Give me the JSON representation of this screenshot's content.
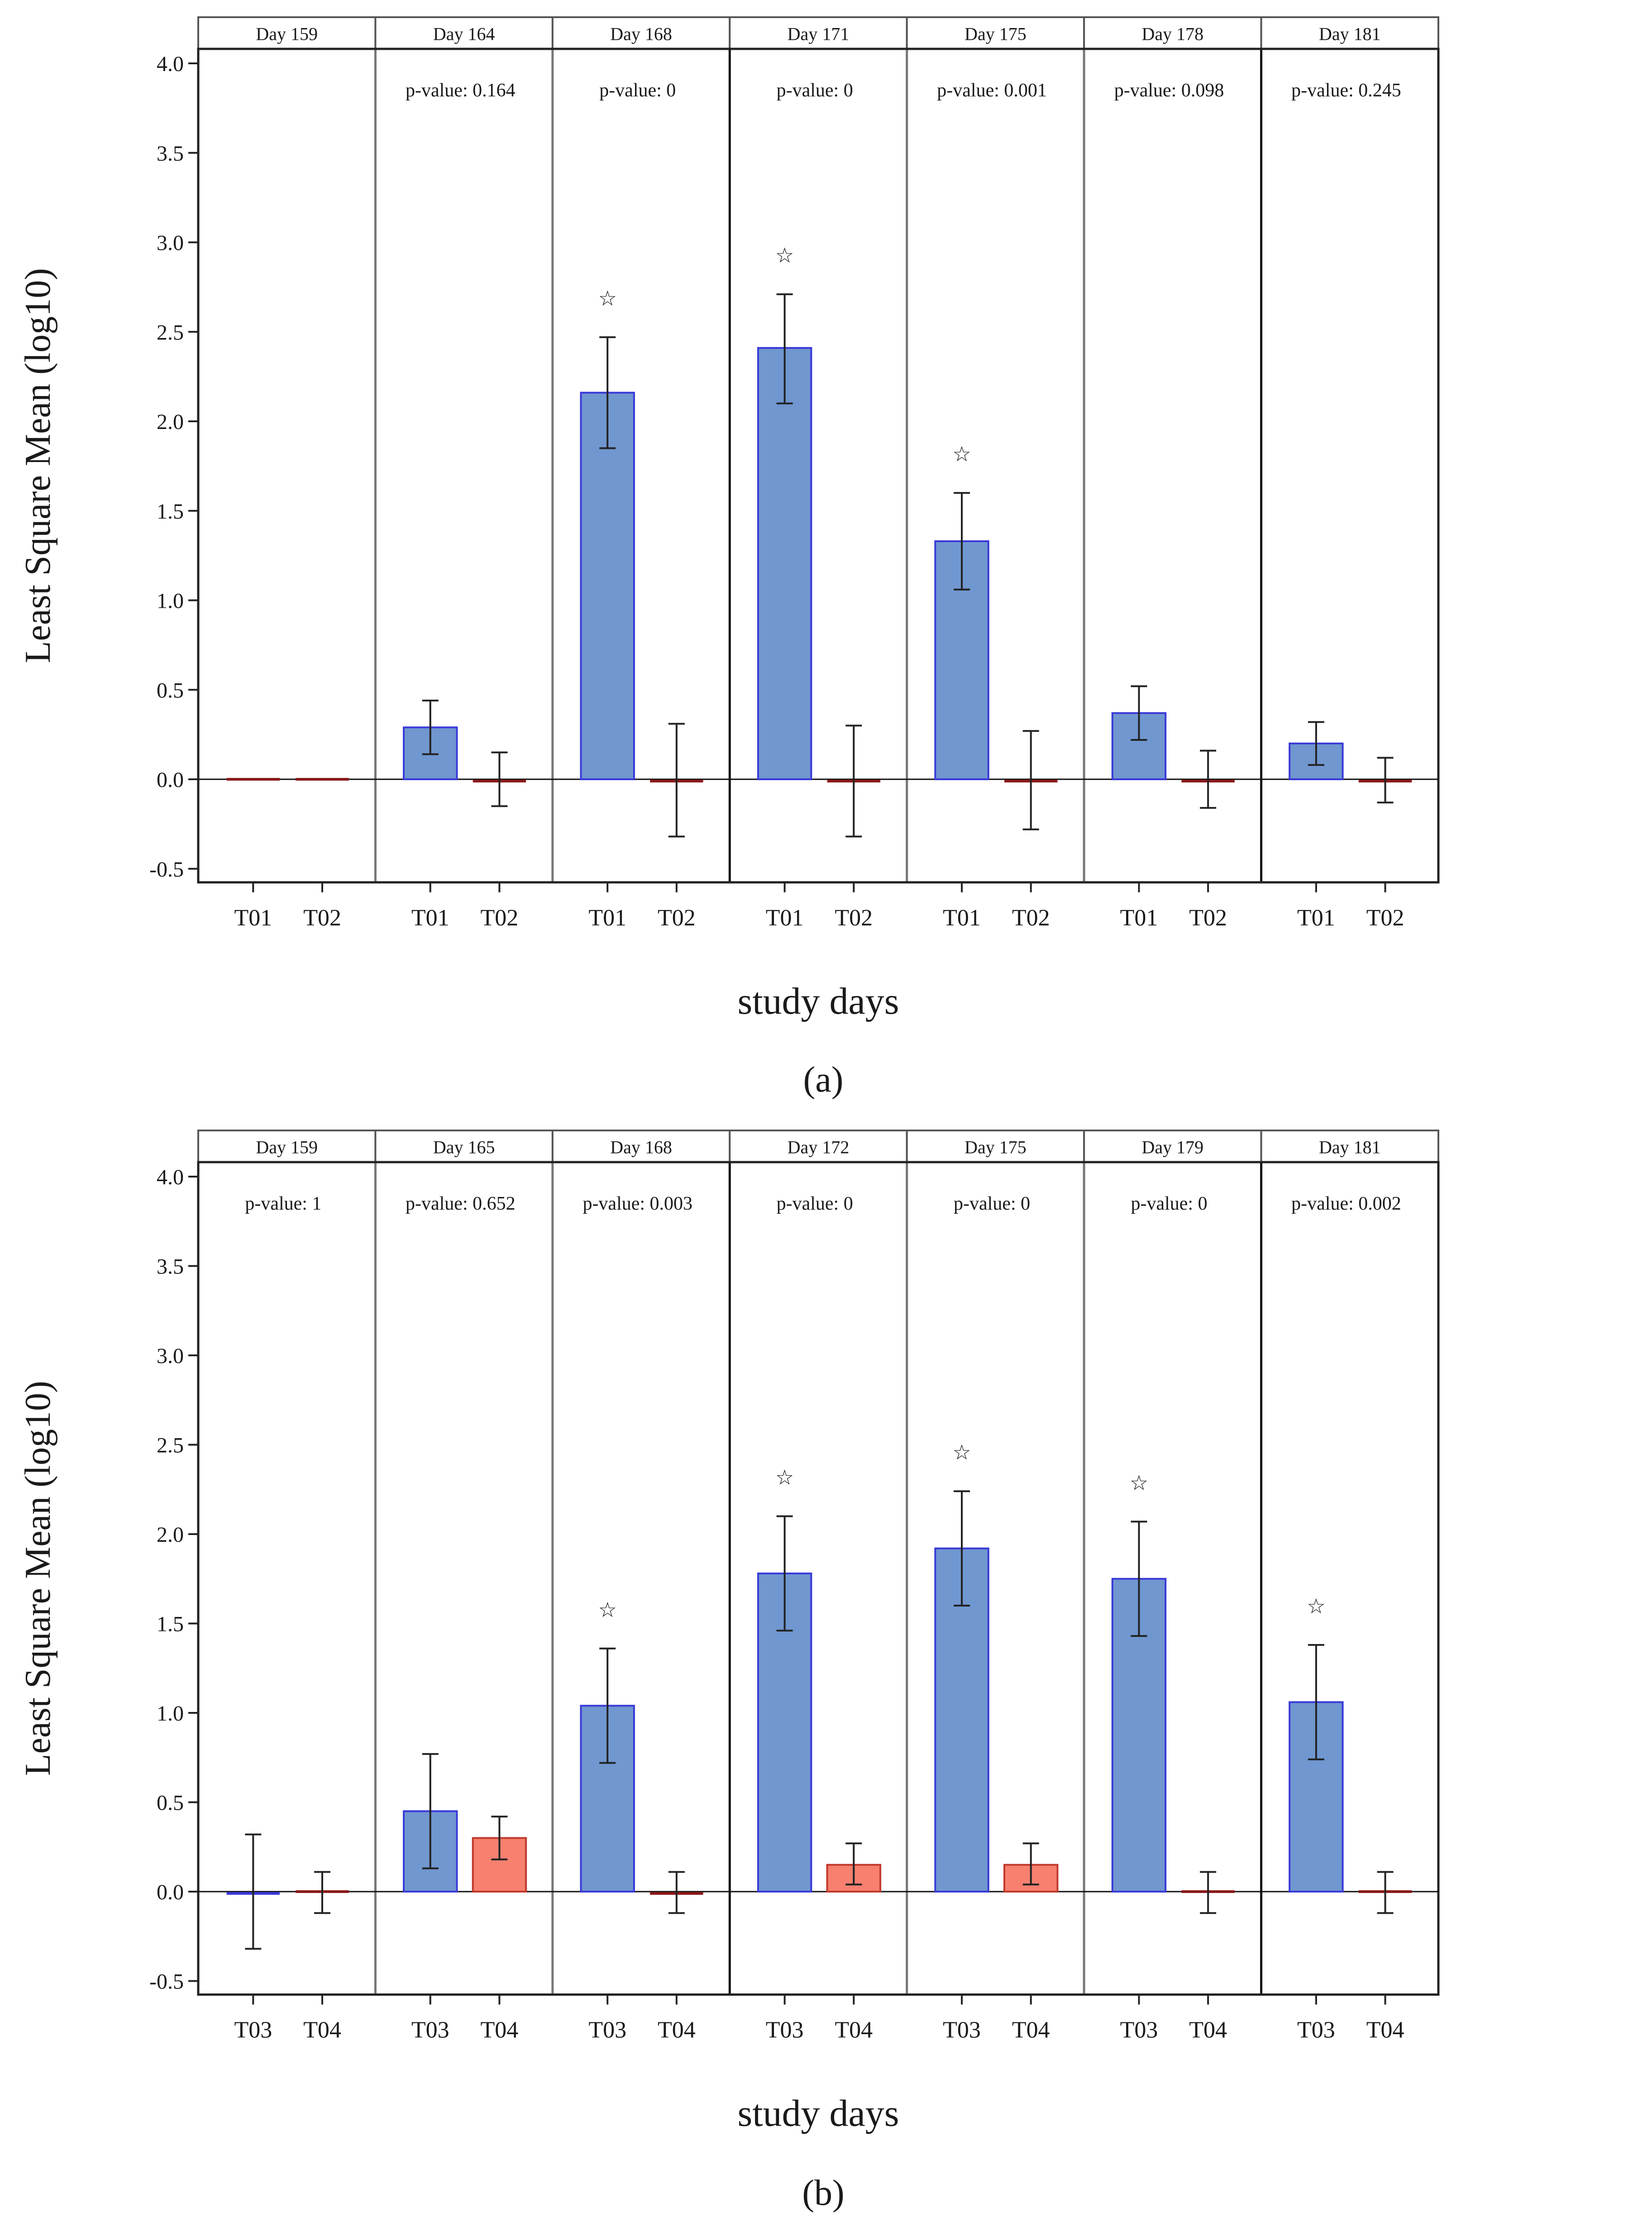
{
  "figure": {
    "panel_labels": [
      "(a)",
      "(b)"
    ],
    "colors": {
      "bar_blue": "#7097cf",
      "bar_blue_edge": "#3a3ad8",
      "bar_red": "#f7806f",
      "bar_red_edge": "#c0392b",
      "zero_line_red": "#8b1a1a",
      "star": "#3f3fd6"
    }
  },
  "chart_data": [
    {
      "type": "bar",
      "panel": "(a)",
      "ylabel": "Least Square Mean (log10)",
      "xlabel": "study days",
      "ylim": [
        -0.5,
        4.0
      ],
      "yticks": [
        "-0.5",
        "0.0",
        "0.5",
        "1.0",
        "1.5",
        "2.0",
        "2.5",
        "3.0",
        "3.5",
        "4.0"
      ],
      "groups": [
        "T01",
        "T02"
      ],
      "facets": [
        {
          "day": "Day 159",
          "pvalue": "",
          "values": [
            0.0,
            0.0
          ],
          "err": [
            [
              null,
              null
            ],
            [
              null,
              null
            ]
          ],
          "star": false
        },
        {
          "day": "Day 164",
          "pvalue": "p-value: 0.164",
          "values": [
            0.29,
            -0.01
          ],
          "err": [
            [
              0.14,
              0.44
            ],
            [
              -0.15,
              0.15
            ]
          ],
          "star": false
        },
        {
          "day": "Day 168",
          "pvalue": "p-value: 0",
          "values": [
            2.16,
            -0.01
          ],
          "err": [
            [
              1.85,
              2.47
            ],
            [
              -0.32,
              0.31
            ]
          ],
          "star": true
        },
        {
          "day": "Day 171",
          "pvalue": "p-value: 0",
          "values": [
            2.41,
            -0.01
          ],
          "err": [
            [
              2.1,
              2.71
            ],
            [
              -0.32,
              0.3
            ]
          ],
          "star": true
        },
        {
          "day": "Day 175",
          "pvalue": "p-value: 0.001",
          "values": [
            1.33,
            -0.01
          ],
          "err": [
            [
              1.06,
              1.6
            ],
            [
              -0.28,
              0.27
            ]
          ],
          "star": true
        },
        {
          "day": "Day 178",
          "pvalue": "p-value: 0.098",
          "values": [
            0.37,
            -0.01
          ],
          "err": [
            [
              0.22,
              0.52
            ],
            [
              -0.16,
              0.16
            ]
          ],
          "star": false
        },
        {
          "day": "Day 181",
          "pvalue": "p-value: 0.245",
          "values": [
            0.2,
            -0.01
          ],
          "err": [
            [
              0.08,
              0.32
            ],
            [
              -0.13,
              0.12
            ]
          ],
          "star": false
        }
      ]
    },
    {
      "type": "bar",
      "panel": "(b)",
      "ylabel": "Least Square Mean (log10)",
      "xlabel": "study days",
      "ylim": [
        -0.5,
        4.0
      ],
      "yticks": [
        "-0.5",
        "0.0",
        "0.5",
        "1.0",
        "1.5",
        "2.0",
        "2.5",
        "3.0",
        "3.5",
        "4.0"
      ],
      "groups": [
        "T03",
        "T04"
      ],
      "facets": [
        {
          "day": "Day 159",
          "pvalue": "p-value: 1",
          "values": [
            -0.01,
            0.0
          ],
          "err": [
            [
              -0.32,
              0.32
            ],
            [
              -0.12,
              0.11
            ]
          ],
          "star": false
        },
        {
          "day": "Day 165",
          "pvalue": "p-value: 0.652",
          "values": [
            0.45,
            0.3
          ],
          "err": [
            [
              0.13,
              0.77
            ],
            [
              0.18,
              0.42
            ]
          ],
          "star": false
        },
        {
          "day": "Day 168",
          "pvalue": "p-value: 0.003",
          "values": [
            1.04,
            -0.01
          ],
          "err": [
            [
              0.72,
              1.36
            ],
            [
              -0.12,
              0.11
            ]
          ],
          "star": true
        },
        {
          "day": "Day 172",
          "pvalue": "p-value: 0",
          "values": [
            1.78,
            0.15
          ],
          "err": [
            [
              1.46,
              2.1
            ],
            [
              0.04,
              0.27
            ]
          ],
          "star": true
        },
        {
          "day": "Day 175",
          "pvalue": "p-value: 0",
          "values": [
            1.92,
            0.15
          ],
          "err": [
            [
              1.6,
              2.24
            ],
            [
              0.04,
              0.27
            ]
          ],
          "star": true
        },
        {
          "day": "Day 179",
          "pvalue": "p-value: 0",
          "values": [
            1.75,
            0.0
          ],
          "err": [
            [
              1.43,
              2.07
            ],
            [
              -0.12,
              0.11
            ]
          ],
          "star": true
        },
        {
          "day": "Day 181",
          "pvalue": "p-value: 0.002",
          "values": [
            1.06,
            0.0
          ],
          "err": [
            [
              0.74,
              1.38
            ],
            [
              -0.12,
              0.11
            ]
          ],
          "star": true
        }
      ]
    }
  ]
}
